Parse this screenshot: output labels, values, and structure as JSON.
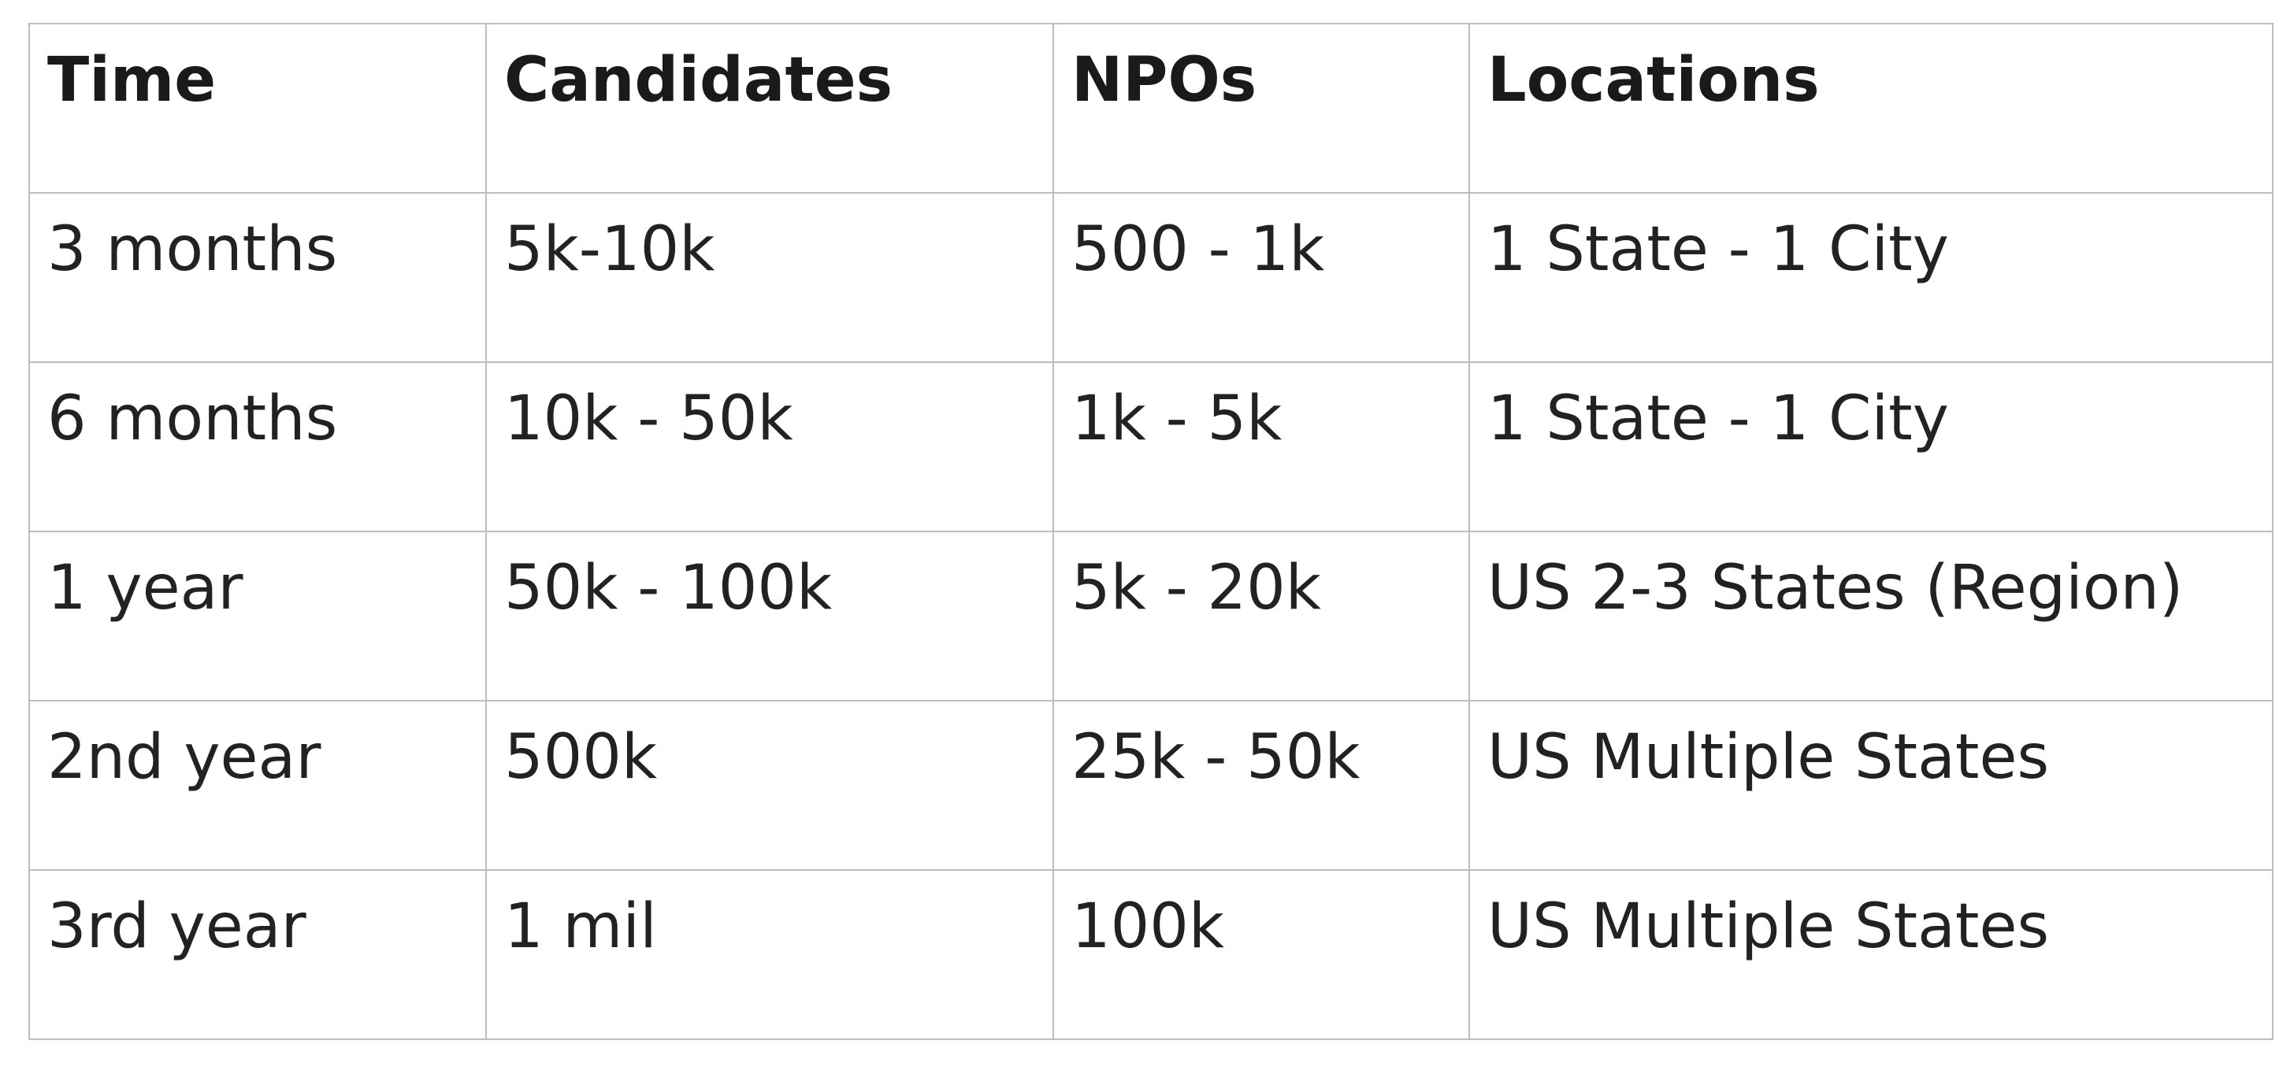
{
  "table": {
    "headers": [
      "Time",
      "Candidates",
      "NPOs",
      "Locations"
    ],
    "rows": [
      [
        "3 months",
        "5k-10k",
        "500 - 1k",
        "1 State - 1 City"
      ],
      [
        "6 months",
        "10k - 50k",
        "1k - 5k",
        "1 State - 1 City"
      ],
      [
        "1 year",
        "50k - 100k",
        "5k - 20k",
        "US 2-3 States (Region)"
      ],
      [
        "2nd year",
        "500k",
        "25k - 50k",
        "US Multiple States"
      ],
      [
        "3rd year",
        "1 mil",
        "100k",
        "US Multiple States"
      ]
    ]
  }
}
